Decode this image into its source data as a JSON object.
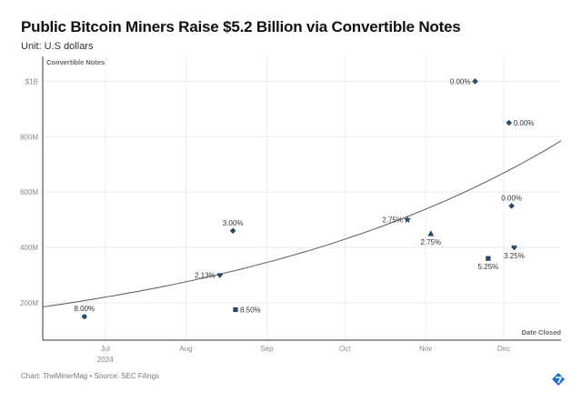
{
  "header": {
    "title": "Public Bitcoin Miners Raise $5.2 Billion via Convertible Notes",
    "subtitle": "Unit: U.S dollars"
  },
  "footer": {
    "credit": "Chart: TheMinerMag • Source: SEC Filings"
  },
  "colors": {
    "marker": "#1f4e79",
    "trend": "#666666",
    "grid": "#ebebeb",
    "axis": "#333333"
  },
  "chart_data": {
    "type": "scatter",
    "ylabel": "Convertible Notes",
    "xlabel": "Date Closed",
    "xlim": [
      "2024-06-07",
      "2024-12-23"
    ],
    "ylim": [
      65,
      1090
    ],
    "y_unit": "millions USD",
    "grid": true,
    "yticks": [
      {
        "v": 200,
        "label": "200M"
      },
      {
        "v": 400,
        "label": "400M"
      },
      {
        "v": 600,
        "label": "600M"
      },
      {
        "v": 800,
        "label": "800M"
      },
      {
        "v": 1000,
        "label": "$1B"
      }
    ],
    "xticks": [
      {
        "d": "2024-07-01",
        "label": "Jul",
        "sub": "2024"
      },
      {
        "d": "2024-08-01",
        "label": "Aug"
      },
      {
        "d": "2024-09-01",
        "label": "Sep"
      },
      {
        "d": "2024-10-01",
        "label": "Oct"
      },
      {
        "d": "2024-11-01",
        "label": "Nov"
      },
      {
        "d": "2024-12-01",
        "label": "Dec"
      }
    ],
    "points": [
      {
        "date": "2024-06-23",
        "value": 150,
        "label": "8.00%",
        "marker": "circle",
        "pos": "above"
      },
      {
        "date": "2024-08-14",
        "value": 300,
        "label": "2.13%",
        "marker": "heart",
        "pos": "left"
      },
      {
        "date": "2024-08-19",
        "value": 460,
        "label": "3.00%",
        "marker": "diamond",
        "pos": "above"
      },
      {
        "date": "2024-08-20",
        "value": 175,
        "label": "8.50%",
        "marker": "square",
        "pos": "right"
      },
      {
        "date": "2024-10-25",
        "value": 500,
        "label": "2.75%",
        "marker": "star",
        "pos": "left"
      },
      {
        "date": "2024-11-03",
        "value": 450,
        "label": "2.75%",
        "marker": "triangle",
        "pos": "below"
      },
      {
        "date": "2024-11-20",
        "value": 1000,
        "label": "0.00%",
        "marker": "diamond",
        "pos": "left"
      },
      {
        "date": "2024-11-25",
        "value": 360,
        "label": "5.25%",
        "marker": "square",
        "pos": "below"
      },
      {
        "date": "2024-12-03",
        "value": 850,
        "label": "0.00%",
        "marker": "diamond",
        "pos": "right"
      },
      {
        "date": "2024-12-04",
        "value": 550,
        "label": "0.00%",
        "marker": "diamond",
        "pos": "above"
      },
      {
        "date": "2024-12-05",
        "value": 400,
        "label": "3.25%",
        "marker": "heart",
        "pos": "below"
      }
    ],
    "trendline": {
      "type": "exponential",
      "start": {
        "date": "2024-06-07",
        "value": 185
      },
      "end": {
        "date": "2024-12-23",
        "value": 785
      }
    }
  }
}
